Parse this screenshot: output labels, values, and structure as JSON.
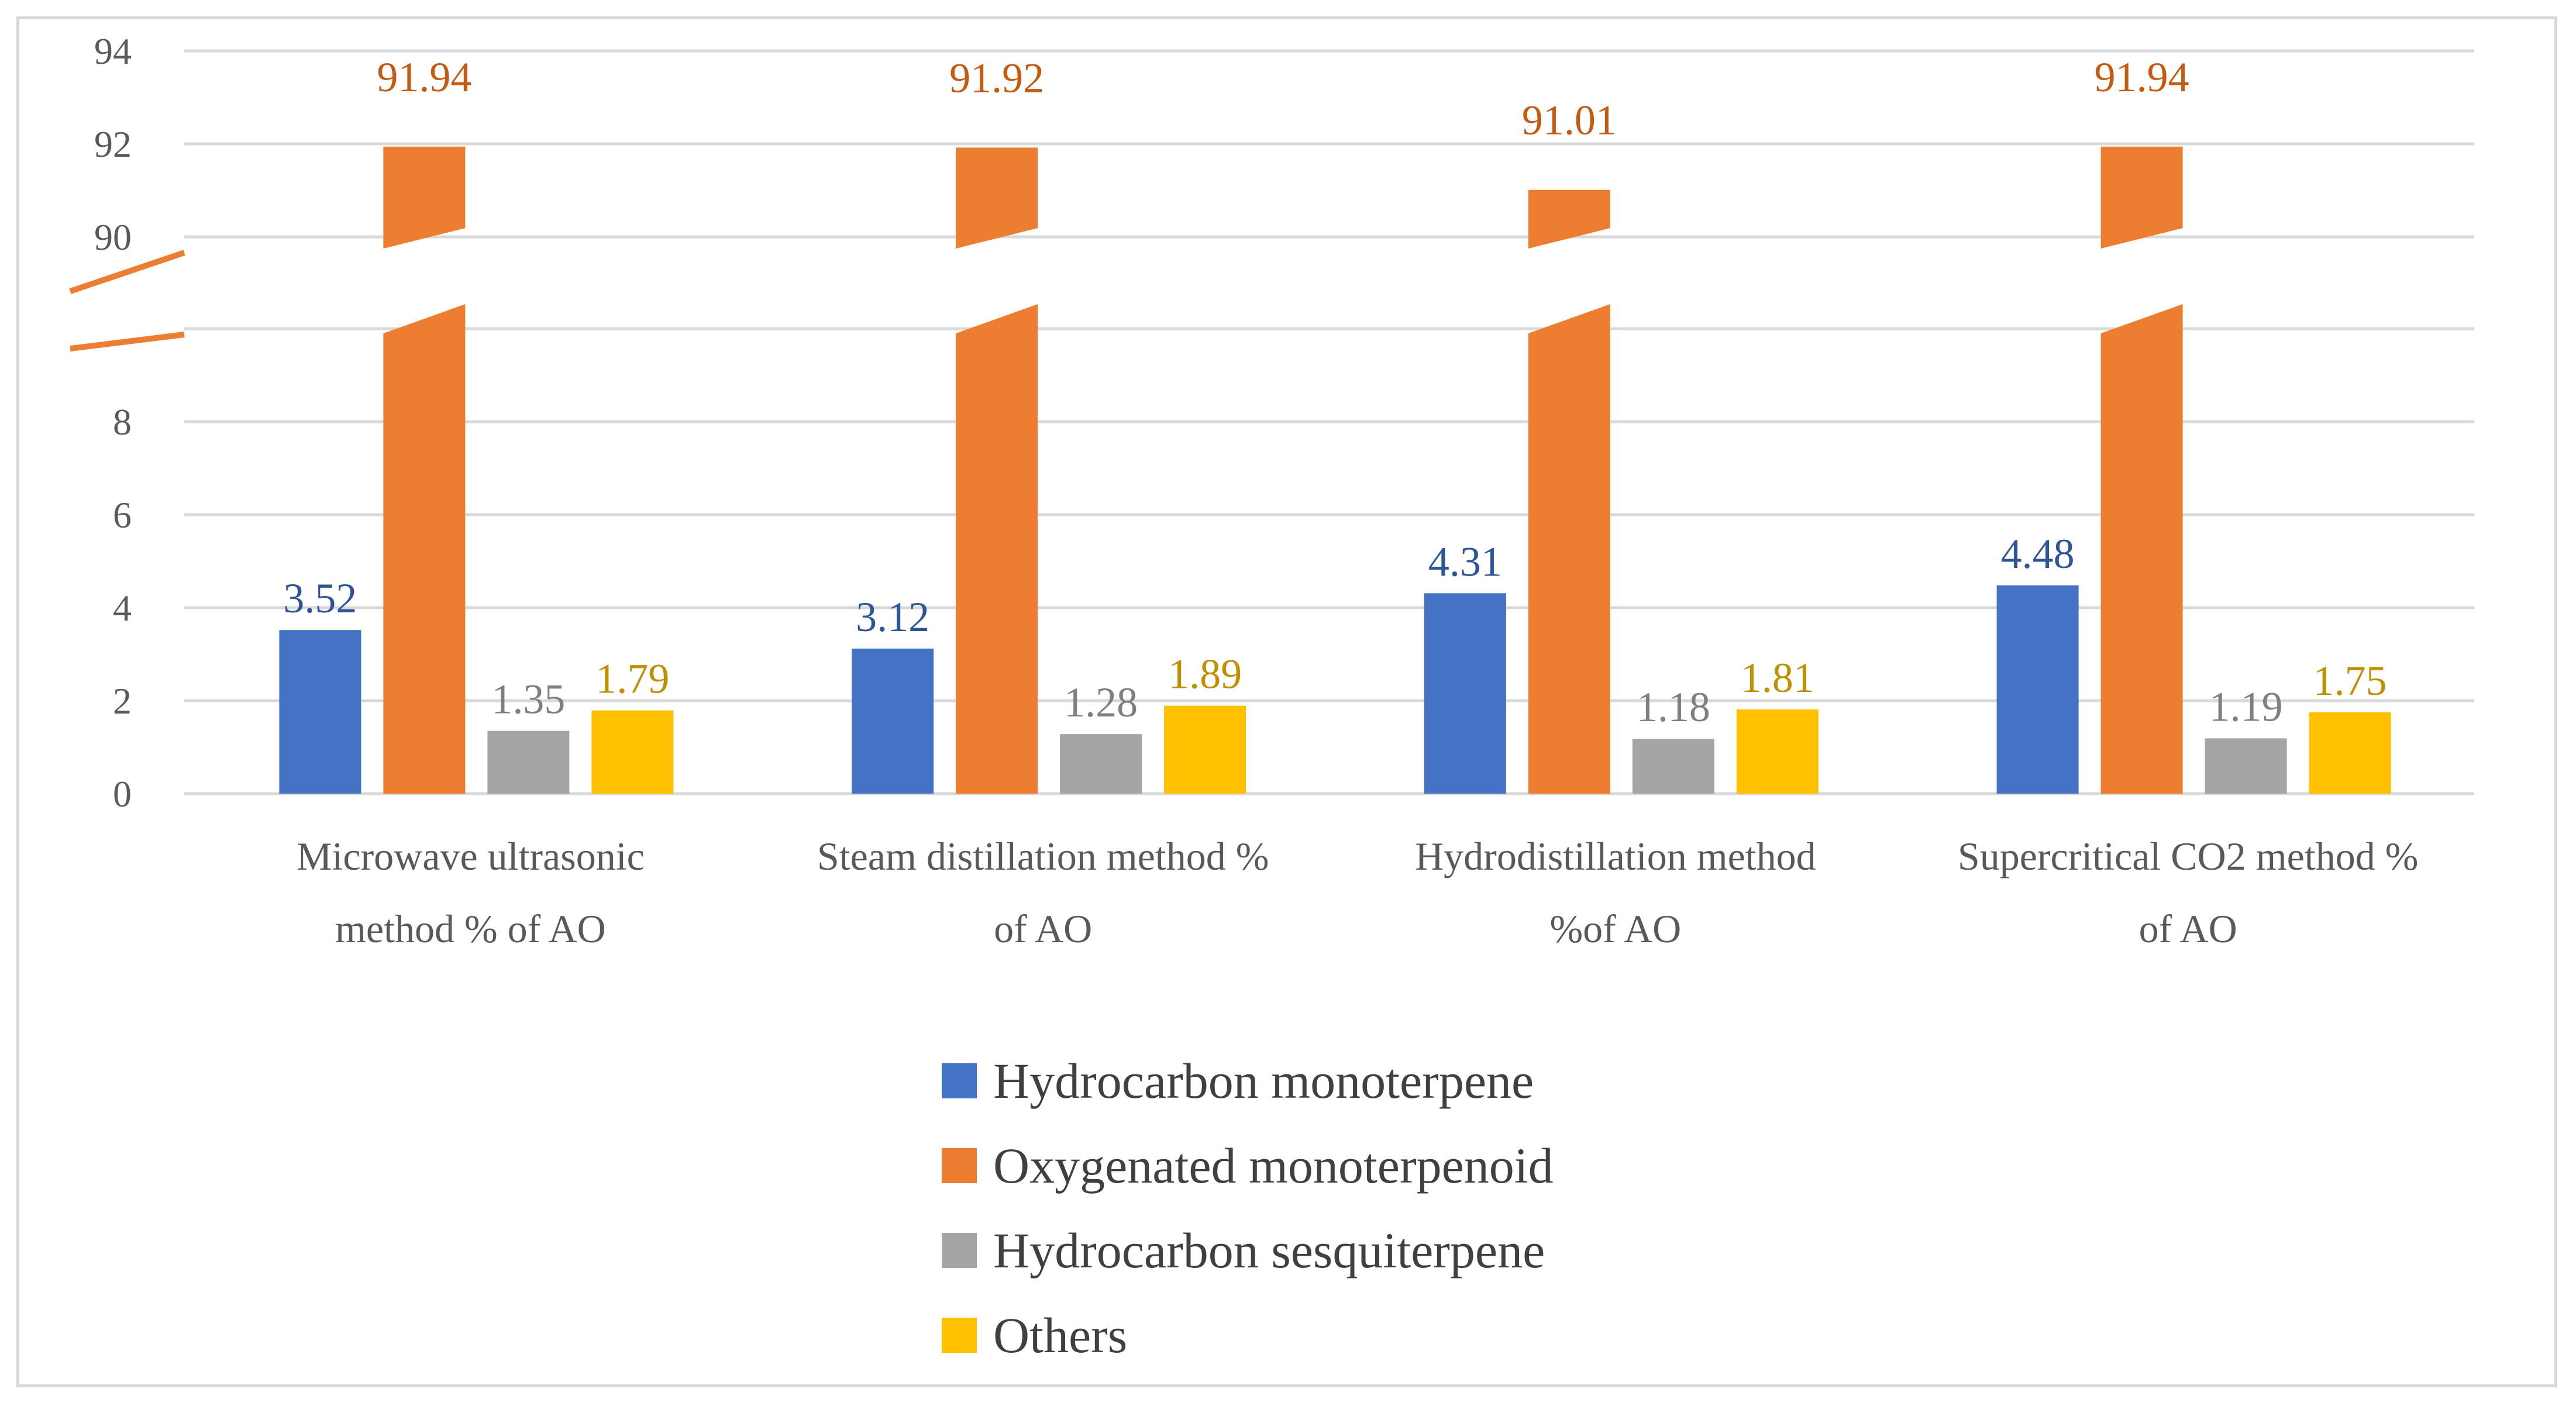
{
  "chart_data": {
    "type": "bar",
    "title": "",
    "xlabel": "",
    "ylabel": "",
    "categories": [
      [
        "Microwave ultrasonic",
        "method % of AO"
      ],
      [
        "Steam distillation method %",
        "of AO"
      ],
      [
        "Hydrodistillation method",
        "%of AO"
      ],
      [
        "Supercritical CO2 method %",
        "of AO"
      ]
    ],
    "y_ticks": [
      "0",
      "2",
      "4",
      "6",
      "8",
      "90",
      "92",
      "94"
    ],
    "axis_break": {
      "lower_range": [
        0,
        10
      ],
      "upper_range": [
        89,
        94
      ]
    },
    "series": [
      {
        "name": "Hydrocarbon monoterpene",
        "color": "#4472c4",
        "label_color": "#2e5597",
        "values": [
          3.52,
          3.12,
          4.31,
          4.48
        ],
        "labels": [
          "3.52",
          "3.12",
          "4.31",
          "4.48"
        ]
      },
      {
        "name": "Oxygenated monoterpenoid",
        "color": "#ed7d31",
        "label_color": "#c55a11",
        "values": [
          91.94,
          91.92,
          91.01,
          91.94
        ],
        "labels": [
          "91.94",
          "91.92",
          "91.01",
          "91.94"
        ]
      },
      {
        "name": "Hydrocarbon sesquiterpene",
        "color": "#a5a5a5",
        "label_color": "#7f7f7f",
        "values": [
          1.35,
          1.28,
          1.18,
          1.19
        ],
        "labels": [
          "1.35",
          "1.28",
          "1.18",
          "1.19"
        ]
      },
      {
        "name": "Others",
        "color": "#ffc000",
        "label_color": "#bf9000",
        "values": [
          1.79,
          1.89,
          1.81,
          1.75
        ],
        "labels": [
          "1.79",
          "1.89",
          "1.81",
          "1.75"
        ]
      }
    ],
    "legend": "bottom"
  }
}
